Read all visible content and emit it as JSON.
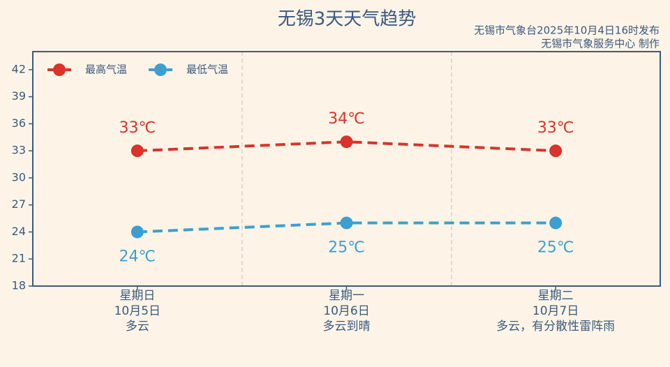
{
  "chart_data": {
    "type": "line",
    "title": "无锡3天天气趋势",
    "subtitle": "无锡市气象台2025年10月4日16时发布",
    "credit": "无锡市气象服务中心 制作",
    "categories": [
      [
        "星期日",
        "10月5日",
        "多云"
      ],
      [
        "星期一",
        "10月6日",
        "多云到晴"
      ],
      [
        "星期二",
        "10月7日",
        "多云，有分散性雷阵雨"
      ]
    ],
    "series": [
      {
        "name": "最高气温",
        "color": "#d9332a",
        "values": [
          33,
          34,
          33
        ],
        "value_labels": [
          "33℃",
          "34℃",
          "33℃"
        ]
      },
      {
        "name": "最低气温",
        "color": "#3d9fd1",
        "values": [
          24,
          25,
          25
        ],
        "value_labels": [
          "24℃",
          "25℃",
          "25℃"
        ]
      }
    ],
    "ylim": [
      18,
      44
    ],
    "yticks": [
      18,
      21,
      24,
      27,
      30,
      33,
      36,
      39,
      42
    ],
    "legend": "upper left"
  }
}
